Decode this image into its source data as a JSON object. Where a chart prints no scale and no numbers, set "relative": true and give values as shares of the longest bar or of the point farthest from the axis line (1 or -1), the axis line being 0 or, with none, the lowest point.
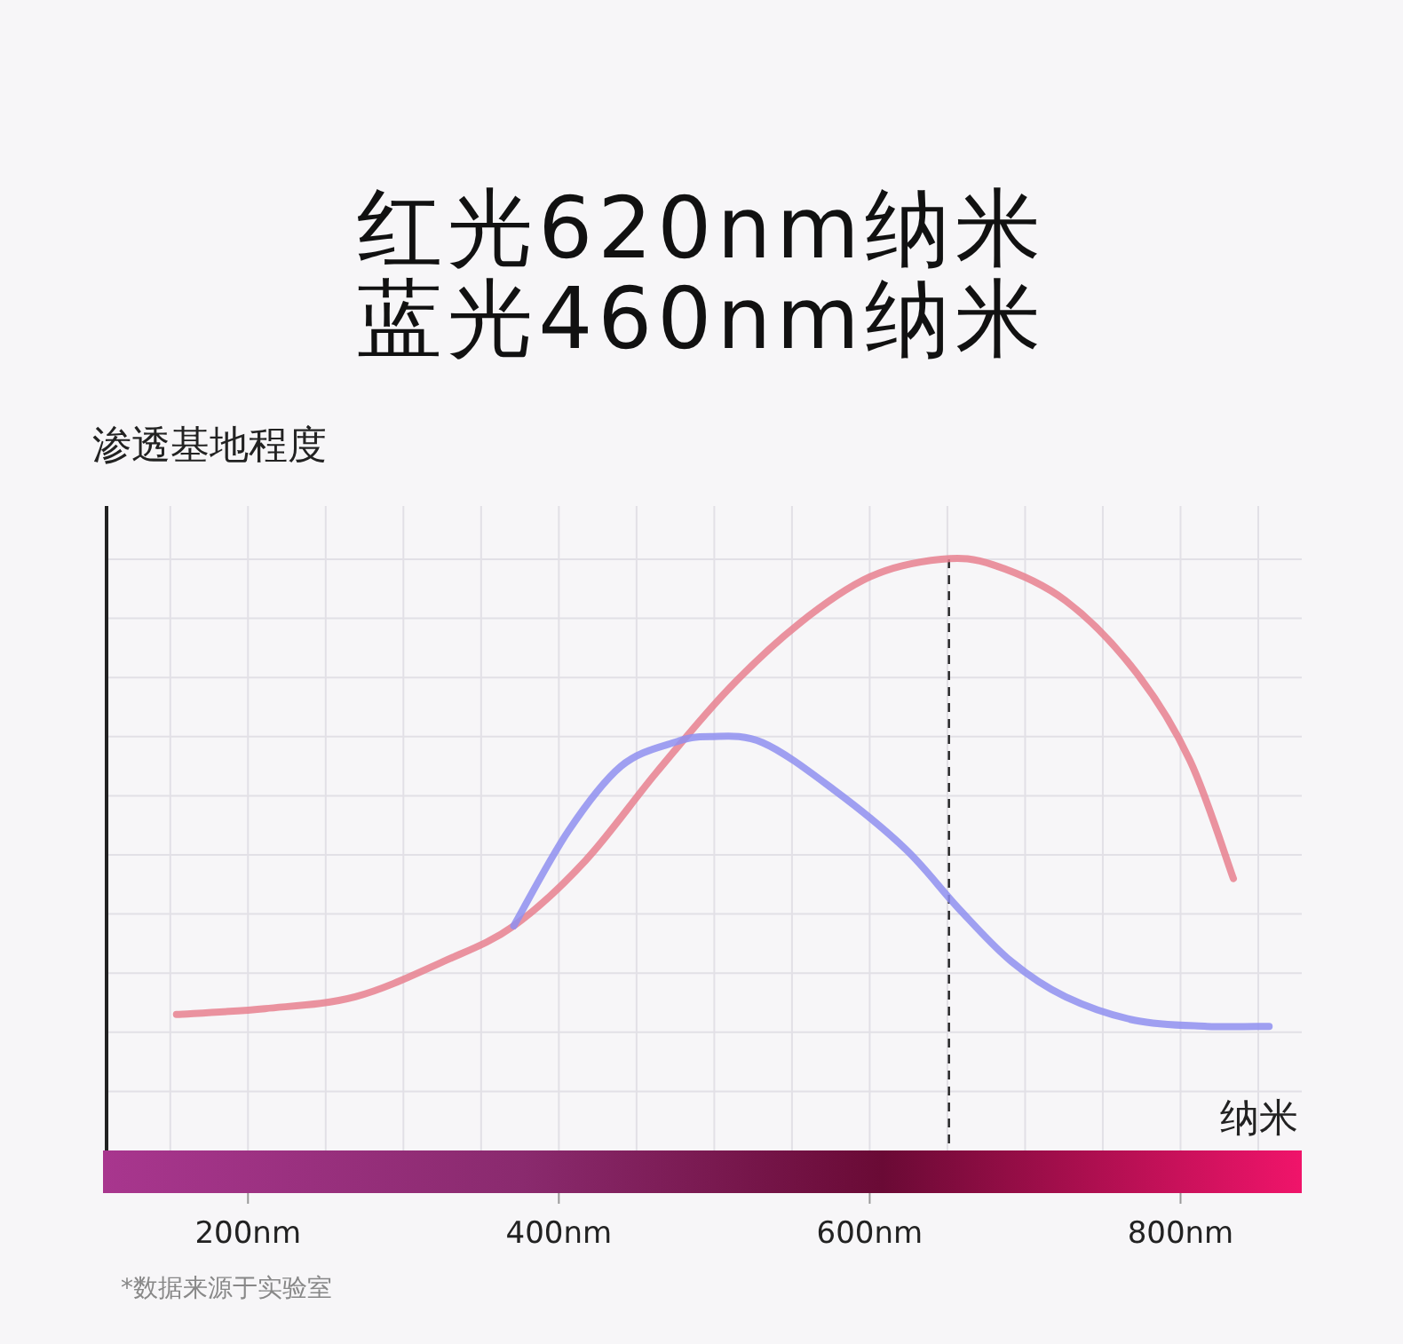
{
  "chart_data": {
    "type": "line",
    "title": "红光620nm纳米",
    "subtitle": "蓝光460nm纳米",
    "ylabel": "渗透基地程度",
    "xlabel": "纳米",
    "relative": true,
    "xlim": [
      109,
      878
    ],
    "xticks": [
      {
        "value": 200,
        "label": "200nm"
      },
      {
        "value": 400,
        "label": "400nm"
      },
      {
        "value": 600,
        "label": "600nm"
      },
      {
        "value": 800,
        "label": "800nm"
      }
    ],
    "grid": true,
    "series": [
      {
        "color": "#e8808f",
        "x": [
          154,
          211,
          269,
          326,
          371,
          417,
          463,
          509,
          554,
          600,
          646,
          680,
          726,
          771,
          806,
          834
        ],
        "values": [
          0.23,
          0.24,
          0.26,
          0.32,
          0.38,
          0.49,
          0.64,
          0.78,
          0.89,
          0.97,
          1.0,
          0.99,
          0.93,
          0.81,
          0.66,
          0.46
        ]
      },
      {
        "color": "#8f8ff0",
        "x": [
          371,
          406,
          440,
          474,
          497,
          531,
          577,
          623,
          657,
          691,
          726,
          771,
          817,
          857
        ],
        "values": [
          0.38,
          0.54,
          0.65,
          0.69,
          0.7,
          0.69,
          0.61,
          0.51,
          0.41,
          0.32,
          0.26,
          0.22,
          0.21,
          0.21
        ]
      }
    ],
    "ref_lines": [
      {
        "axis": "x",
        "value": 651,
        "color": "#222222",
        "line_style": "dashed"
      }
    ],
    "annotations": [
      "*数据来源于实验室"
    ]
  }
}
